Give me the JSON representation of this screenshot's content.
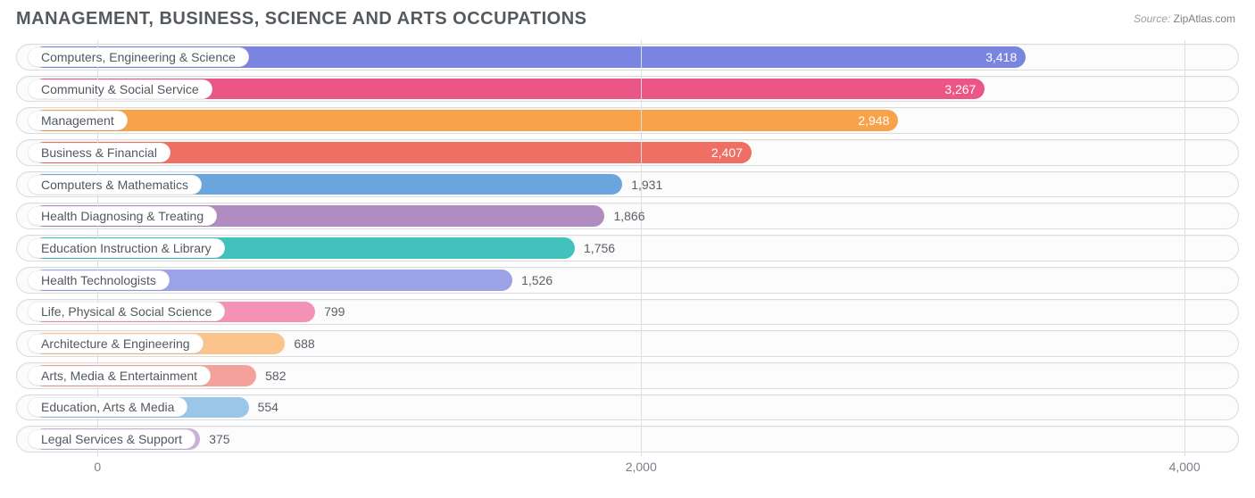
{
  "chart": {
    "title": "MANAGEMENT, BUSINESS, SCIENCE AND ARTS OCCUPATIONS",
    "source_label": "Source:",
    "source_value": "ZipAtlas.com",
    "type": "bar",
    "xmin": -300,
    "xmax": 4200,
    "ticks": [
      {
        "value": 0,
        "label": "0"
      },
      {
        "value": 2000,
        "label": "2,000"
      },
      {
        "value": 4000,
        "label": "4,000"
      }
    ],
    "grid_color": "#dcdfe2",
    "track_bg": "#fcfcfc",
    "track_border": "#d9dcdf",
    "bg": "#ffffff",
    "title_color": "#555a5f",
    "tick_color": "#7c8188",
    "label_color": "#525860",
    "title_fontsize": 20,
    "label_fontsize": 14,
    "tick_fontsize": 14,
    "bar_start": -240,
    "series": [
      {
        "label": "Computers, Engineering & Science",
        "value": 3418,
        "display": "3,418",
        "color": "#7a85e0",
        "value_inside": true,
        "value_color": "#ffffff"
      },
      {
        "label": "Community & Social Service",
        "value": 3267,
        "display": "3,267",
        "color": "#ec5686",
        "value_inside": true,
        "value_color": "#ffffff"
      },
      {
        "label": "Management",
        "value": 2948,
        "display": "2,948",
        "color": "#f8a24a",
        "value_inside": true,
        "value_color": "#ffffff"
      },
      {
        "label": "Business & Financial",
        "value": 2407,
        "display": "2,407",
        "color": "#ef6f65",
        "value_inside": true,
        "value_color": "#ffffff"
      },
      {
        "label": "Computers & Mathematics",
        "value": 1931,
        "display": "1,931",
        "color": "#6aa6dd",
        "value_inside": false,
        "value_color": "#5a6068"
      },
      {
        "label": "Health Diagnosing & Treating",
        "value": 1866,
        "display": "1,866",
        "color": "#b08cc0",
        "value_inside": false,
        "value_color": "#5a6068"
      },
      {
        "label": "Education Instruction & Library",
        "value": 1756,
        "display": "1,756",
        "color": "#41c2bd",
        "value_inside": false,
        "value_color": "#5a6068"
      },
      {
        "label": "Health Technologists",
        "value": 1526,
        "display": "1,526",
        "color": "#9ba3e6",
        "value_inside": false,
        "value_color": "#5a6068"
      },
      {
        "label": "Life, Physical & Social Science",
        "value": 799,
        "display": "799",
        "color": "#f492b6",
        "value_inside": false,
        "value_color": "#5a6068"
      },
      {
        "label": "Architecture & Engineering",
        "value": 688,
        "display": "688",
        "color": "#fac48a",
        "value_inside": false,
        "value_color": "#5a6068"
      },
      {
        "label": "Arts, Media & Entertainment",
        "value": 582,
        "display": "582",
        "color": "#f4a19b",
        "value_inside": false,
        "value_color": "#5a6068"
      },
      {
        "label": "Education, Arts & Media",
        "value": 554,
        "display": "554",
        "color": "#9ac6e8",
        "value_inside": false,
        "value_color": "#5a6068"
      },
      {
        "label": "Legal Services & Support",
        "value": 375,
        "display": "375",
        "color": "#c9b2d6",
        "value_inside": false,
        "value_color": "#5a6068"
      }
    ]
  }
}
